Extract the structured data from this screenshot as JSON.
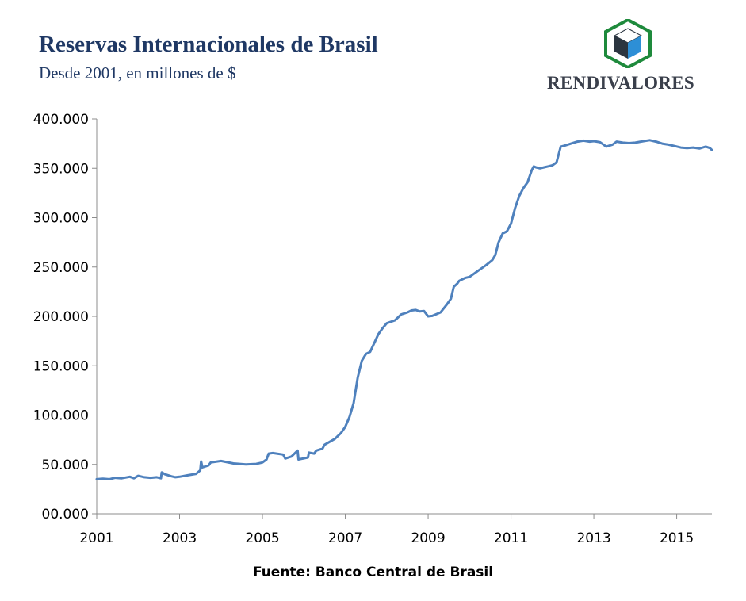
{
  "header": {
    "title": "Reservas Internacionales de Brasil",
    "subtitle": "Desde 2001, en millones de $"
  },
  "brand": {
    "name": "RENDIVALORES",
    "logo_icon": "cube-logo-icon",
    "colors": {
      "frame": "#1e8a3c",
      "face_light": "#2d8fd6",
      "face_dark": "#2b3540"
    }
  },
  "footer": {
    "source": "Fuente: Banco Central de Brasil"
  },
  "chart_data": {
    "type": "line",
    "title": "Reservas Internacionales de Brasil",
    "subtitle": "Desde 2001, en millones de $",
    "xlabel": "",
    "ylabel": "",
    "xlim": [
      2001,
      2015.85
    ],
    "ylim": [
      0,
      400000
    ],
    "grid": false,
    "legend": "none",
    "line_color": "#4f81bd",
    "x_ticks": [
      "2001",
      "2003",
      "2005",
      "2007",
      "2009",
      "2011",
      "2013",
      "2015"
    ],
    "y_ticks": [
      "00.000",
      "50.000",
      "100.000",
      "150.000",
      "200.000",
      "250.000",
      "300.000",
      "350.000",
      "400.000"
    ],
    "series": [
      {
        "x": [
          2001.0,
          2001.15,
          2001.3,
          2001.45,
          2001.6,
          2001.8,
          2001.9,
          2002.0,
          2002.15,
          2002.3,
          2002.45,
          2002.55,
          2002.57,
          2002.65,
          2002.8,
          2002.9,
          2003.0,
          2003.2,
          2003.4,
          2003.5,
          2003.52,
          2003.55,
          2003.7,
          2003.75,
          2004.0,
          2004.3,
          2004.6,
          2004.85,
          2005.0,
          2005.1,
          2005.15,
          2005.25,
          2005.5,
          2005.55,
          2005.7,
          2005.85,
          2005.87,
          2006.1,
          2006.12,
          2006.25,
          2006.3,
          2006.45,
          2006.5,
          2006.75,
          2006.9,
          2007.0,
          2007.1,
          2007.2,
          2007.3,
          2007.4,
          2007.5,
          2007.6,
          2007.7,
          2007.8,
          2007.9,
          2008.0,
          2008.2,
          2008.35,
          2008.5,
          2008.6,
          2008.7,
          2008.8,
          2008.9,
          2009.0,
          2009.1,
          2009.3,
          2009.45,
          2009.55,
          2009.62,
          2009.7,
          2009.75,
          2009.9,
          2010.0,
          2010.2,
          2010.4,
          2010.55,
          2010.62,
          2010.7,
          2010.8,
          2010.9,
          2011.0,
          2011.1,
          2011.2,
          2011.3,
          2011.4,
          2011.5,
          2011.55,
          2011.6,
          2011.7,
          2011.8,
          2011.9,
          2012.0,
          2012.1,
          2012.2,
          2012.3,
          2012.45,
          2012.6,
          2012.75,
          2012.9,
          2013.0,
          2013.15,
          2013.3,
          2013.45,
          2013.55,
          2013.7,
          2013.85,
          2014.0,
          2014.2,
          2014.35,
          2014.5,
          2014.65,
          2014.8,
          2014.95,
          2015.1,
          2015.25,
          2015.4,
          2015.55,
          2015.7,
          2015.8,
          2015.85
        ],
        "values": [
          35000,
          35500,
          35000,
          36500,
          36000,
          37500,
          36000,
          38500,
          37000,
          36500,
          37000,
          36000,
          42000,
          40000,
          38000,
          37000,
          37500,
          39000,
          40500,
          44000,
          53000,
          47000,
          49000,
          52000,
          53500,
          51000,
          50000,
          50500,
          52000,
          55000,
          61000,
          61500,
          60000,
          56000,
          58000,
          64000,
          55000,
          57000,
          62000,
          61000,
          64000,
          66000,
          70000,
          76000,
          82000,
          88000,
          98000,
          112000,
          138000,
          155000,
          162000,
          164000,
          173000,
          182000,
          188000,
          193000,
          196000,
          202000,
          204000,
          206000,
          206500,
          205000,
          205500,
          200000,
          200500,
          204000,
          212000,
          218000,
          230000,
          233000,
          236000,
          239000,
          240000,
          246000,
          252000,
          257000,
          262000,
          275000,
          284000,
          286000,
          294000,
          310000,
          322000,
          330000,
          336000,
          348000,
          352000,
          351000,
          350000,
          351000,
          352000,
          353000,
          356000,
          372000,
          373000,
          375000,
          377000,
          378000,
          377000,
          377500,
          376500,
          372000,
          374000,
          377000,
          376000,
          375500,
          376000,
          377500,
          378500,
          377000,
          375000,
          374000,
          372500,
          371000,
          370500,
          371000,
          370000,
          372000,
          370500,
          368500
        ]
      }
    ],
    "source": "Fuente: Banco Central de Brasil"
  }
}
